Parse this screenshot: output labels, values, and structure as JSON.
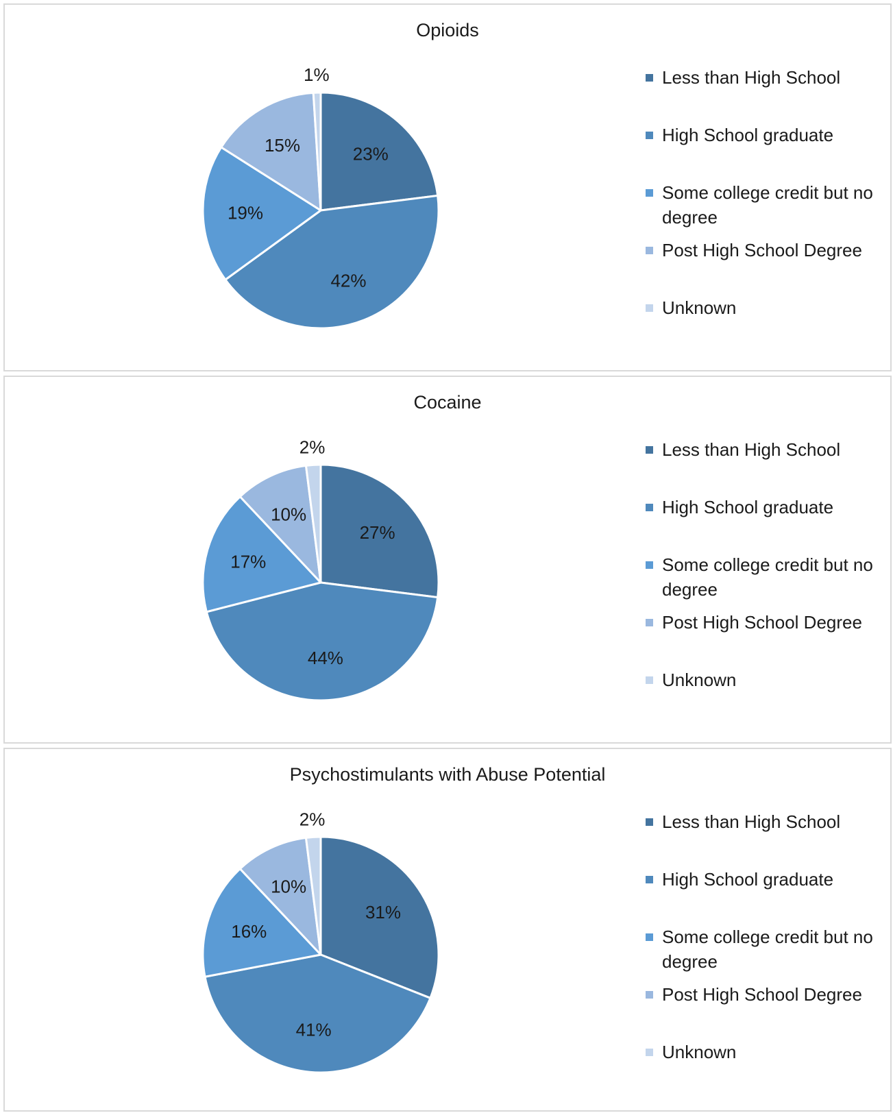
{
  "chart_data": [
    {
      "type": "pie",
      "title": "Opioids",
      "categories": [
        "Less than High School",
        "High School graduate",
        "Some college credit but no degree",
        "Post High School Degree",
        "Unknown"
      ],
      "values": [
        23,
        42,
        19,
        15,
        1
      ],
      "labels": [
        "23%",
        "42%",
        "19%",
        "15%",
        "1%"
      ],
      "colors": [
        "#44749f",
        "#4f89bc",
        "#5b9bd5",
        "#9ab8df",
        "#c3d5ec"
      ],
      "legend": "right"
    },
    {
      "type": "pie",
      "title": "Cocaine",
      "categories": [
        "Less than High School",
        "High School graduate",
        "Some college credit but no degree",
        "Post High School Degree",
        "Unknown"
      ],
      "values": [
        27,
        44,
        17,
        10,
        2
      ],
      "labels": [
        "27%",
        "44%",
        "17%",
        "10%",
        "2%"
      ],
      "colors": [
        "#44749f",
        "#4f89bc",
        "#5b9bd5",
        "#9ab8df",
        "#c3d5ec"
      ],
      "legend": "right"
    },
    {
      "type": "pie",
      "title": "Psychostimulants with Abuse Potential",
      "categories": [
        "Less than High School",
        "High School graduate",
        "Some college credit but no degree",
        "Post High School Degree",
        "Unknown"
      ],
      "values": [
        31,
        41,
        16,
        10,
        2
      ],
      "labels": [
        "31%",
        "41%",
        "16%",
        "10%",
        "2%"
      ],
      "colors": [
        "#44749f",
        "#4f89bc",
        "#5b9bd5",
        "#9ab8df",
        "#c3d5ec"
      ],
      "legend": "right"
    }
  ]
}
